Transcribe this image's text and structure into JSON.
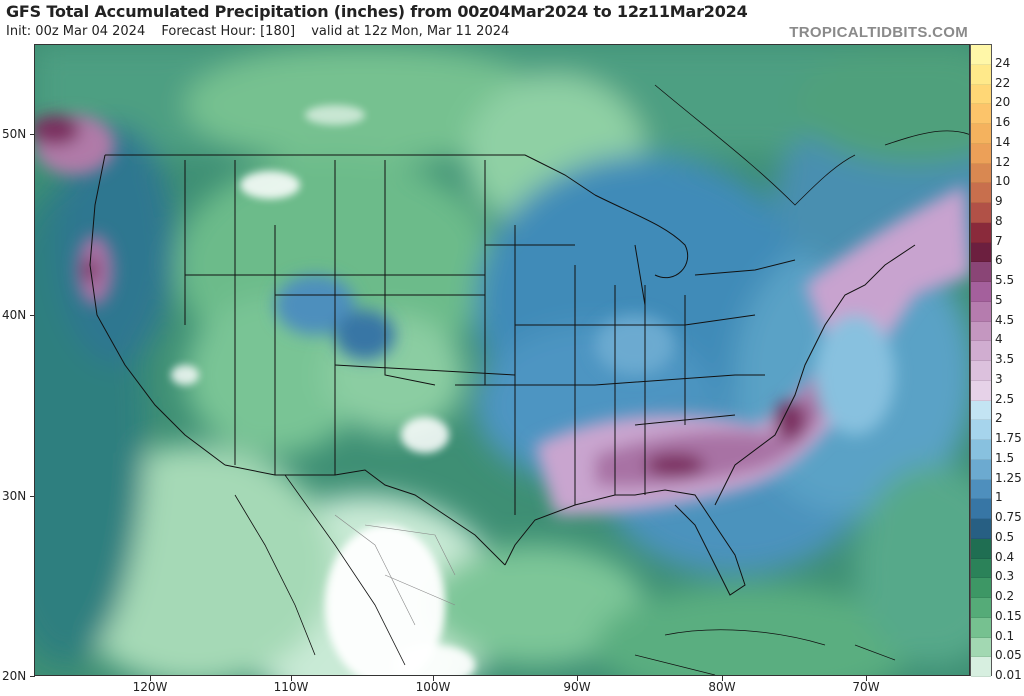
{
  "header": {
    "title": "GFS Total Accumulated Precipitation (inches) from 00z04Mar2024 to 12z11Mar2024",
    "init": "Init: 00z Mar 04 2024",
    "forecast_hour": "Forecast Hour: [180]",
    "valid": "valid at 12z Mon, Mar 11 2024",
    "brand": "TROPICALTIDBITS.COM"
  },
  "axes": {
    "lat_labels": [
      "50N",
      "40N",
      "30N",
      "20N"
    ],
    "lon_labels": [
      "120W",
      "110W",
      "100W",
      "90W",
      "80W",
      "70W"
    ]
  },
  "legend": {
    "labels": [
      "24",
      "22",
      "20",
      "16",
      "14",
      "12",
      "10",
      "9",
      "8",
      "7",
      "6",
      "5.5",
      "5",
      "4.5",
      "4",
      "3.5",
      "3",
      "2.5",
      "2",
      "1.75",
      "1.5",
      "1.25",
      "1",
      "0.75",
      "0.5",
      "0.4",
      "0.3",
      "0.2",
      "0.15",
      "0.1",
      "0.05",
      "0.01"
    ],
    "colors": [
      "#fff7a8",
      "#ffe98a",
      "#ffd776",
      "#fcc46a",
      "#f4b25e",
      "#eca058",
      "#d98851",
      "#c86f4d",
      "#b15147",
      "#8a2a3b",
      "#6c1f3f",
      "#8a4576",
      "#a4609c",
      "#b57cae",
      "#c497c0",
      "#d0add0",
      "#dcc1dd",
      "#e6d2e8",
      "#c3e4f3",
      "#a6d4ec",
      "#88c1df",
      "#6caad0",
      "#4e8fbd",
      "#3776a5",
      "#275f83",
      "#1f6e52",
      "#2b8259",
      "#3d9765",
      "#55ab78",
      "#76c190",
      "#a2d8b2",
      "#d7efe0"
    ]
  }
}
